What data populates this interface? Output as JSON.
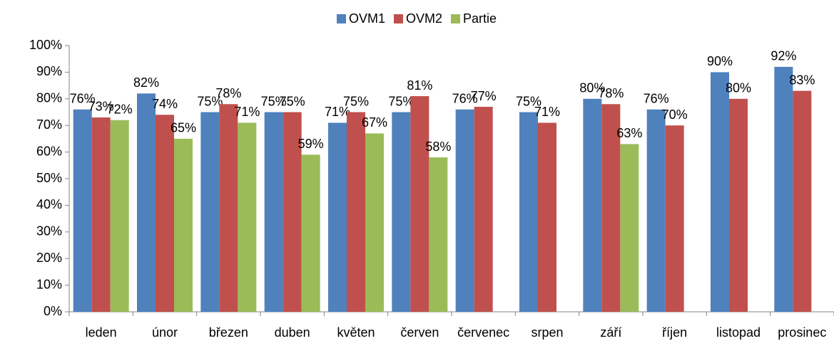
{
  "chart_data": {
    "type": "bar",
    "categories": [
      "leden",
      "únor",
      "březen",
      "duben",
      "květen",
      "červen",
      "červenec",
      "srpen",
      "září",
      "říjen",
      "listopad",
      "prosinec"
    ],
    "series": [
      {
        "name": "OVM1",
        "color": "#4f81bd",
        "values": [
          76,
          82,
          75,
          75,
          71,
          75,
          76,
          75,
          80,
          76,
          90,
          92
        ],
        "value_labels": [
          "76%",
          "82%",
          "75%",
          "75%",
          "71%",
          "75%",
          "76%",
          "75%",
          "80%",
          "76%",
          "90%",
          "92%"
        ]
      },
      {
        "name": "OVM2",
        "color": "#c0504d",
        "values": [
          73,
          74,
          78,
          75,
          75,
          81,
          77,
          71,
          78,
          70,
          80,
          83
        ],
        "value_labels": [
          "73%",
          "74%",
          "78%",
          "75%",
          "75%",
          "81%",
          "77%",
          "71%",
          "78%",
          "70%",
          "80%",
          "83%"
        ]
      },
      {
        "name": "Partie",
        "color": "#9bbb59",
        "values": [
          72,
          65,
          71,
          59,
          67,
          58,
          null,
          null,
          63,
          null,
          null,
          null
        ],
        "value_labels": [
          "72%",
          "65%",
          "71%",
          "59%",
          "67%",
          "58%",
          null,
          null,
          "63%",
          null,
          null,
          null
        ]
      }
    ],
    "ylim": [
      0,
      100
    ],
    "yticks": [
      {
        "value": 0,
        "label": "0%"
      },
      {
        "value": 10,
        "label": "10%"
      },
      {
        "value": 20,
        "label": "20%"
      },
      {
        "value": 30,
        "label": "30%"
      },
      {
        "value": 40,
        "label": "40%"
      },
      {
        "value": 50,
        "label": "50%"
      },
      {
        "value": 60,
        "label": "60%"
      },
      {
        "value": 70,
        "label": "70%"
      },
      {
        "value": 80,
        "label": "80%"
      },
      {
        "value": 90,
        "label": "90%"
      },
      {
        "value": 100,
        "label": "100%"
      }
    ],
    "grid": false,
    "legend": "top"
  }
}
